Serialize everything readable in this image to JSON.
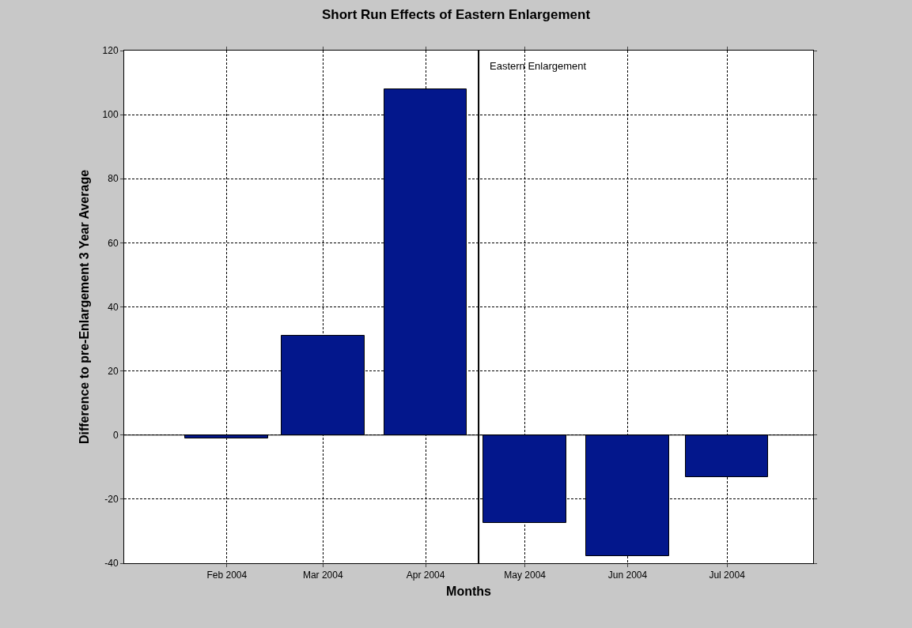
{
  "chart_data": {
    "type": "bar",
    "title": "Short Run Effects of Eastern Enlargement",
    "xlabel": "Months",
    "ylabel": "Difference to pre-Enlargement 3 Year Average",
    "x": [
      "2004-02-15",
      "2004-03-15",
      "2004-04-15",
      "2004-05-15",
      "2004-06-15",
      "2004-07-15"
    ],
    "values": [
      -1,
      31,
      108,
      -27.4,
      -37.8,
      -13.1
    ],
    "color": "#03178c",
    "xlim": [
      "2004-01-15",
      "2004-08-10"
    ],
    "xticks": [
      {
        "value": "2004-02-15",
        "label": "Feb 2004"
      },
      {
        "value": "2004-03-15",
        "label": "Mar 2004"
      },
      {
        "value": "2004-04-15",
        "label": "Apr 2004"
      },
      {
        "value": "2004-05-15",
        "label": "May 2004"
      },
      {
        "value": "2004-06-15",
        "label": "Jun 2004"
      },
      {
        "value": "2004-07-15",
        "label": "Jul 2004"
      }
    ],
    "ylim": [
      -40,
      120
    ],
    "yticks": [
      -40,
      -20,
      0,
      20,
      40,
      60,
      80,
      100,
      120
    ],
    "grid": true,
    "ref_lines": [
      {
        "axis": "x",
        "value": "2004-05-01",
        "label": "Eastern Enlargement",
        "color": "#000000"
      }
    ]
  }
}
